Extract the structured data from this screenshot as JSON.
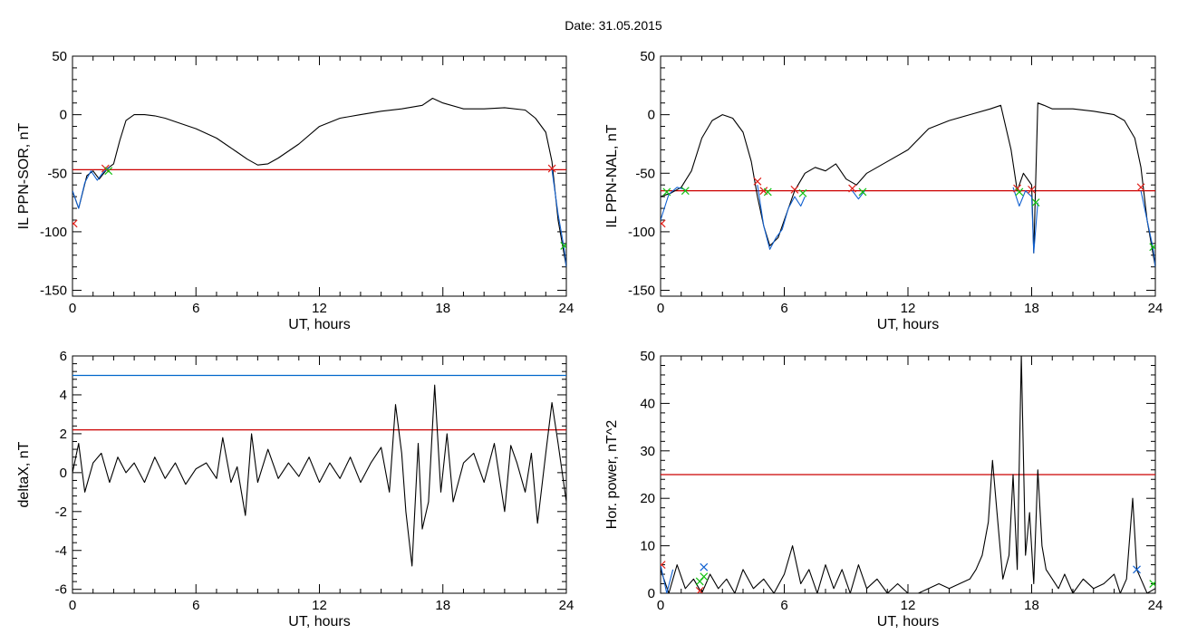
{
  "page": {
    "title": "Date:  31.05.2015"
  },
  "colors": {
    "line": "#000000",
    "threshold_red": "#cc0000",
    "threshold_blue": "#0066cc",
    "marker_red": "#e0201a",
    "marker_green": "#10c010",
    "marker_blue": "#1060d0"
  },
  "chart_data": [
    {
      "id": "p1",
      "type": "line",
      "xlabel": "UT, hours",
      "ylabel": "IL PPN-SOR, nT",
      "xlim": [
        0,
        24
      ],
      "ylim": [
        -155,
        50
      ],
      "xticks": [
        0,
        6,
        12,
        18,
        24
      ],
      "yticks": [
        -150,
        -100,
        -50,
        0,
        50
      ],
      "series": [
        {
          "color": "#000000",
          "x": [
            0,
            0.3,
            0.7,
            1,
            1.3,
            1.7,
            2,
            2.3,
            2.6,
            3,
            3.5,
            4,
            4.5,
            5,
            6,
            7,
            8,
            8.5,
            9,
            9.5,
            10,
            11,
            12,
            13,
            14,
            15,
            16,
            17,
            17.5,
            18,
            19,
            20,
            21,
            22,
            22.5,
            23,
            23.3,
            23.6,
            24
          ],
          "y": [
            -65,
            -80,
            -52,
            -48,
            -55,
            -46,
            -42,
            -22,
            -5,
            0,
            0,
            -1,
            -3,
            -6,
            -12,
            -20,
            -32,
            -38,
            -43,
            -42,
            -37,
            -25,
            -10,
            -3,
            0,
            3,
            5,
            8,
            14,
            10,
            5,
            5,
            6,
            4,
            -3,
            -15,
            -40,
            -90,
            -130
          ]
        },
        {
          "color": "#1060d0",
          "x": [
            0,
            0.3,
            0.6,
            0.9,
            1.2,
            1.5,
            1.8
          ],
          "y": [
            -65,
            -80,
            -58,
            -48,
            -56,
            -49,
            -45
          ]
        },
        {
          "color": "#1060d0",
          "x": [
            23.3,
            23.6,
            23.9,
            24
          ],
          "y": [
            -47,
            -85,
            -115,
            -130
          ]
        }
      ],
      "hlines": [
        {
          "y": -47,
          "color": "#cc0000"
        }
      ],
      "markers": [
        {
          "x": 0.05,
          "y": -93,
          "color": "#e0201a",
          "shape": "x"
        },
        {
          "x": 1.6,
          "y": -46,
          "color": "#e0201a",
          "shape": "x"
        },
        {
          "x": 1.75,
          "y": -48,
          "color": "#10c010",
          "shape": "x"
        },
        {
          "x": 23.3,
          "y": -46,
          "color": "#e0201a",
          "shape": "x"
        },
        {
          "x": 23.9,
          "y": -112,
          "color": "#10c010",
          "shape": "x"
        }
      ]
    },
    {
      "id": "p2",
      "type": "line",
      "xlabel": "UT, hours",
      "ylabel": "IL PPN-NAL, nT",
      "xlim": [
        0,
        24
      ],
      "ylim": [
        -155,
        50
      ],
      "xticks": [
        0,
        6,
        12,
        18,
        24
      ],
      "yticks": [
        -150,
        -100,
        -50,
        0,
        50
      ],
      "series": [
        {
          "color": "#000000",
          "x": [
            0,
            0.5,
            1,
            1.5,
            2,
            2.5,
            3,
            3.5,
            4,
            4.4,
            4.7,
            5,
            5.3,
            5.7,
            6,
            6.5,
            7,
            7.5,
            8,
            8.5,
            9,
            9.5,
            10,
            11,
            12,
            13,
            14,
            15,
            16,
            16.5,
            17,
            17.3,
            17.6,
            18,
            18.1,
            18.3,
            18.6,
            19,
            20,
            21,
            22,
            22.5,
            23,
            23.3,
            23.6,
            24
          ],
          "y": [
            -70,
            -67,
            -62,
            -48,
            -20,
            -5,
            0,
            -3,
            -15,
            -40,
            -70,
            -95,
            -112,
            -105,
            -90,
            -65,
            -50,
            -45,
            -48,
            -42,
            -55,
            -60,
            -50,
            -40,
            -30,
            -12,
            -5,
            0,
            5,
            8,
            -30,
            -65,
            -50,
            -60,
            -118,
            10,
            8,
            5,
            5,
            3,
            0,
            -5,
            -20,
            -45,
            -90,
            -130
          ]
        },
        {
          "color": "#1060d0",
          "x": [
            0,
            0.4,
            0.8,
            1.2
          ],
          "y": [
            -90,
            -68,
            -62,
            -64
          ]
        },
        {
          "color": "#1060d0",
          "x": [
            4.7,
            5,
            5.3,
            5.6,
            5.9,
            6.2,
            6.5,
            6.8,
            7
          ],
          "y": [
            -60,
            -95,
            -115,
            -105,
            -98,
            -80,
            -70,
            -78,
            -70
          ]
        },
        {
          "color": "#1060d0",
          "x": [
            9.3,
            9.6,
            9.9
          ],
          "y": [
            -65,
            -72,
            -65
          ]
        },
        {
          "color": "#1060d0",
          "x": [
            17.1,
            17.4,
            17.7,
            18,
            18.1,
            18.3
          ],
          "y": [
            -62,
            -78,
            -65,
            -70,
            -118,
            -75
          ]
        },
        {
          "color": "#1060d0",
          "x": [
            23.3,
            23.6,
            23.9,
            24
          ],
          "y": [
            -65,
            -90,
            -115,
            -130
          ]
        }
      ],
      "hlines": [
        {
          "y": -65,
          "color": "#cc0000"
        }
      ],
      "markers": [
        {
          "x": 0.05,
          "y": -93,
          "color": "#e0201a",
          "shape": "x"
        },
        {
          "x": 0.3,
          "y": -66,
          "color": "#10c010",
          "shape": "x"
        },
        {
          "x": 1.2,
          "y": -65,
          "color": "#10c010",
          "shape": "x"
        },
        {
          "x": 4.7,
          "y": -57,
          "color": "#e0201a",
          "shape": "x"
        },
        {
          "x": 5.0,
          "y": -65,
          "color": "#e0201a",
          "shape": "x"
        },
        {
          "x": 5.2,
          "y": -66,
          "color": "#10c010",
          "shape": "x"
        },
        {
          "x": 6.5,
          "y": -64,
          "color": "#e0201a",
          "shape": "x"
        },
        {
          "x": 6.9,
          "y": -67,
          "color": "#10c010",
          "shape": "x"
        },
        {
          "x": 9.3,
          "y": -63,
          "color": "#e0201a",
          "shape": "x"
        },
        {
          "x": 9.8,
          "y": -66,
          "color": "#10c010",
          "shape": "x"
        },
        {
          "x": 17.3,
          "y": -63,
          "color": "#e0201a",
          "shape": "x"
        },
        {
          "x": 17.4,
          "y": -66,
          "color": "#10c010",
          "shape": "x"
        },
        {
          "x": 18.0,
          "y": -64,
          "color": "#e0201a",
          "shape": "x"
        },
        {
          "x": 18.2,
          "y": -75,
          "color": "#10c010",
          "shape": "x"
        },
        {
          "x": 23.3,
          "y": -62,
          "color": "#e0201a",
          "shape": "x"
        },
        {
          "x": 23.9,
          "y": -113,
          "color": "#10c010",
          "shape": "x"
        }
      ]
    },
    {
      "id": "p3",
      "type": "line",
      "xlabel": "UT, hours",
      "ylabel": "deltaX, nT",
      "xlim": [
        0,
        24
      ],
      "ylim": [
        -6.2,
        6
      ],
      "xticks": [
        0,
        6,
        12,
        18,
        24
      ],
      "yticks": [
        -6,
        -4,
        -2,
        0,
        2,
        4,
        6
      ],
      "series": [
        {
          "color": "#000000",
          "x": [
            0,
            0.3,
            0.6,
            1,
            1.4,
            1.8,
            2.2,
            2.6,
            3,
            3.5,
            4,
            4.5,
            5,
            5.5,
            6,
            6.5,
            7,
            7.3,
            7.7,
            8,
            8.4,
            8.7,
            9,
            9.5,
            10,
            10.5,
            11,
            11.5,
            12,
            12.5,
            13,
            13.5,
            14,
            14.5,
            15,
            15.4,
            15.7,
            16,
            16.2,
            16.5,
            16.8,
            17,
            17.3,
            17.6,
            17.9,
            18.2,
            18.5,
            19,
            19.5,
            20,
            20.5,
            21,
            21.3,
            21.6,
            22,
            22.3,
            22.6,
            23,
            23.3,
            23.6,
            24
          ],
          "y": [
            0,
            1.5,
            -1,
            0.5,
            1,
            -0.5,
            0.8,
            0,
            0.5,
            -0.5,
            0.8,
            -0.3,
            0.5,
            -0.6,
            0.2,
            0.5,
            -0.3,
            1.8,
            -0.5,
            0.3,
            -2.2,
            2,
            -0.5,
            1.2,
            -0.3,
            0.5,
            -0.2,
            0.8,
            -0.5,
            0.5,
            -0.3,
            0.8,
            -0.5,
            0.5,
            1.3,
            -1,
            3.5,
            1,
            -2,
            -4.8,
            1.5,
            -2.9,
            -1.5,
            4.5,
            -1,
            2,
            -1.5,
            0.5,
            1,
            -0.5,
            1.5,
            -2,
            1.4,
            0.5,
            -1,
            1,
            -2.6,
            1,
            3.6,
            1.5,
            -1.5
          ]
        }
      ],
      "hlines": [
        {
          "y": 5,
          "color": "#0066cc"
        },
        {
          "y": 2.2,
          "color": "#cc0000"
        }
      ],
      "markers": []
    },
    {
      "id": "p4",
      "type": "line",
      "xlabel": "UT, hours",
      "ylabel": "Hor. power, nT^2",
      "xlim": [
        0,
        24
      ],
      "ylim": [
        0,
        50
      ],
      "xticks": [
        0,
        6,
        12,
        18,
        24
      ],
      "yticks": [
        0,
        10,
        20,
        30,
        40,
        50
      ],
      "series": [
        {
          "color": "#000000",
          "x": [
            0,
            0.4,
            0.8,
            1.2,
            1.6,
            2,
            2.4,
            2.8,
            3.2,
            3.6,
            4,
            4.5,
            5,
            5.5,
            6,
            6.4,
            6.8,
            7.2,
            7.6,
            8,
            8.4,
            8.8,
            9.2,
            9.6,
            10,
            10.5,
            11,
            11.5,
            12,
            12.5,
            13,
            13.5,
            14,
            14.5,
            15,
            15.3,
            15.6,
            15.9,
            16.1,
            16.3,
            16.6,
            16.9,
            17.1,
            17.3,
            17.5,
            17.7,
            17.9,
            18.1,
            18.3,
            18.5,
            18.7,
            19,
            19.3,
            19.6,
            20,
            20.5,
            21,
            21.5,
            22,
            22.3,
            22.6,
            22.9,
            23.1,
            23.3,
            23.6,
            24
          ],
          "y": [
            5,
            0,
            6,
            1,
            3,
            0,
            4,
            1,
            3,
            0,
            5,
            1,
            3,
            0,
            4,
            10,
            2,
            5,
            0,
            6,
            1,
            5,
            0,
            6,
            1,
            3,
            0,
            2,
            0,
            0,
            1,
            2,
            1,
            2,
            3,
            5,
            8,
            15,
            28,
            18,
            3,
            8,
            25,
            5,
            50,
            8,
            17,
            2,
            26,
            10,
            5,
            3,
            1,
            4,
            0,
            3,
            1,
            2,
            4,
            0,
            3,
            20,
            5,
            3,
            0,
            1
          ]
        },
        {
          "color": "#1060d0",
          "x": [
            0,
            0.3,
            0.6
          ],
          "y": [
            6,
            0,
            5
          ]
        }
      ],
      "hlines": [
        {
          "y": 25,
          "color": "#cc0000"
        }
      ],
      "markers": [
        {
          "x": 0.05,
          "y": 6,
          "color": "#e0201a",
          "shape": "x"
        },
        {
          "x": 1.9,
          "y": 0.5,
          "color": "#e0201a",
          "shape": "x"
        },
        {
          "x": 1.9,
          "y": 2.5,
          "color": "#10c010",
          "shape": "x"
        },
        {
          "x": 2.1,
          "y": 3.5,
          "color": "#10c010",
          "shape": "x"
        },
        {
          "x": 2.1,
          "y": 5.5,
          "color": "#1060d0",
          "shape": "x"
        },
        {
          "x": 23.1,
          "y": 5,
          "color": "#1060d0",
          "shape": "x"
        },
        {
          "x": 23.9,
          "y": 2,
          "color": "#10c010",
          "shape": "x"
        }
      ]
    }
  ]
}
